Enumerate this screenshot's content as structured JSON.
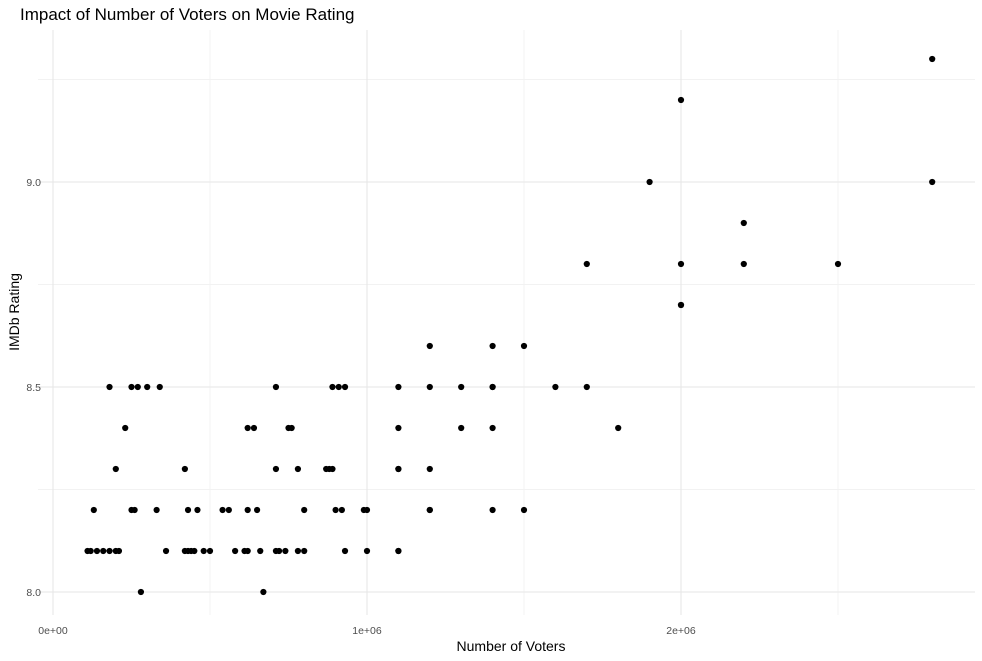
{
  "chart_data": {
    "type": "scatter",
    "title": "Impact of Number of Voters on Movie Rating",
    "xlabel": "Number of Voters",
    "ylabel": "IMDb Rating",
    "xlim": [
      0,
      2850000
    ],
    "ylim": [
      7.95,
      9.35
    ],
    "x_ticks": [
      {
        "value": 0,
        "label": "0e+00"
      },
      {
        "value": 1000000,
        "label": "1e+06"
      },
      {
        "value": 2000000,
        "label": "2e+06"
      }
    ],
    "y_ticks": [
      {
        "value": 8.0,
        "label": "8.0"
      },
      {
        "value": 8.5,
        "label": "8.5"
      },
      {
        "value": 9.0,
        "label": "9.0"
      }
    ],
    "grid": true,
    "legend": "none",
    "point_color": "#000000",
    "points": [
      [
        2800000,
        9.3
      ],
      [
        2000000,
        9.2
      ],
      [
        1900000,
        9.0
      ],
      [
        2800000,
        9.0
      ],
      [
        2200000,
        8.9
      ],
      [
        1700000,
        8.8
      ],
      [
        2000000,
        8.8
      ],
      [
        2200000,
        8.8
      ],
      [
        2500000,
        8.8
      ],
      [
        2000000,
        8.7
      ],
      [
        2000000,
        8.7
      ],
      [
        1200000,
        8.6
      ],
      [
        1400000,
        8.6
      ],
      [
        1500000,
        8.6
      ],
      [
        180000,
        8.5
      ],
      [
        250000,
        8.5
      ],
      [
        270000,
        8.5
      ],
      [
        300000,
        8.5
      ],
      [
        340000,
        8.5
      ],
      [
        710000,
        8.5
      ],
      [
        890000,
        8.5
      ],
      [
        910000,
        8.5
      ],
      [
        930000,
        8.5
      ],
      [
        1100000,
        8.5
      ],
      [
        1200000,
        8.5
      ],
      [
        1300000,
        8.5
      ],
      [
        1400000,
        8.5
      ],
      [
        1400000,
        8.5
      ],
      [
        1600000,
        8.5
      ],
      [
        1700000,
        8.5
      ],
      [
        230000,
        8.4
      ],
      [
        620000,
        8.4
      ],
      [
        640000,
        8.4
      ],
      [
        750000,
        8.4
      ],
      [
        760000,
        8.4
      ],
      [
        1100000,
        8.4
      ],
      [
        1300000,
        8.4
      ],
      [
        1400000,
        8.4
      ],
      [
        1800000,
        8.4
      ],
      [
        200000,
        8.3
      ],
      [
        420000,
        8.3
      ],
      [
        710000,
        8.3
      ],
      [
        780000,
        8.3
      ],
      [
        870000,
        8.3
      ],
      [
        880000,
        8.3
      ],
      [
        890000,
        8.3
      ],
      [
        1100000,
        8.3
      ],
      [
        1100000,
        8.3
      ],
      [
        1200000,
        8.3
      ],
      [
        130000,
        8.2
      ],
      [
        250000,
        8.2
      ],
      [
        260000,
        8.2
      ],
      [
        330000,
        8.2
      ],
      [
        430000,
        8.2
      ],
      [
        460000,
        8.2
      ],
      [
        540000,
        8.2
      ],
      [
        560000,
        8.2
      ],
      [
        620000,
        8.2
      ],
      [
        650000,
        8.2
      ],
      [
        800000,
        8.2
      ],
      [
        900000,
        8.2
      ],
      [
        920000,
        8.2
      ],
      [
        990000,
        8.2
      ],
      [
        1000000,
        8.2
      ],
      [
        1200000,
        8.2
      ],
      [
        1200000,
        8.2
      ],
      [
        1400000,
        8.2
      ],
      [
        1500000,
        8.2
      ],
      [
        110000,
        8.1
      ],
      [
        120000,
        8.1
      ],
      [
        140000,
        8.1
      ],
      [
        160000,
        8.1
      ],
      [
        180000,
        8.1
      ],
      [
        200000,
        8.1
      ],
      [
        210000,
        8.1
      ],
      [
        360000,
        8.1
      ],
      [
        420000,
        8.1
      ],
      [
        430000,
        8.1
      ],
      [
        440000,
        8.1
      ],
      [
        450000,
        8.1
      ],
      [
        480000,
        8.1
      ],
      [
        500000,
        8.1
      ],
      [
        580000,
        8.1
      ],
      [
        610000,
        8.1
      ],
      [
        620000,
        8.1
      ],
      [
        660000,
        8.1
      ],
      [
        710000,
        8.1
      ],
      [
        720000,
        8.1
      ],
      [
        740000,
        8.1
      ],
      [
        780000,
        8.1
      ],
      [
        800000,
        8.1
      ],
      [
        930000,
        8.1
      ],
      [
        1000000,
        8.1
      ],
      [
        1100000,
        8.1
      ],
      [
        1100000,
        8.1
      ],
      [
        280000,
        8.0
      ],
      [
        670000,
        8.0
      ]
    ]
  }
}
